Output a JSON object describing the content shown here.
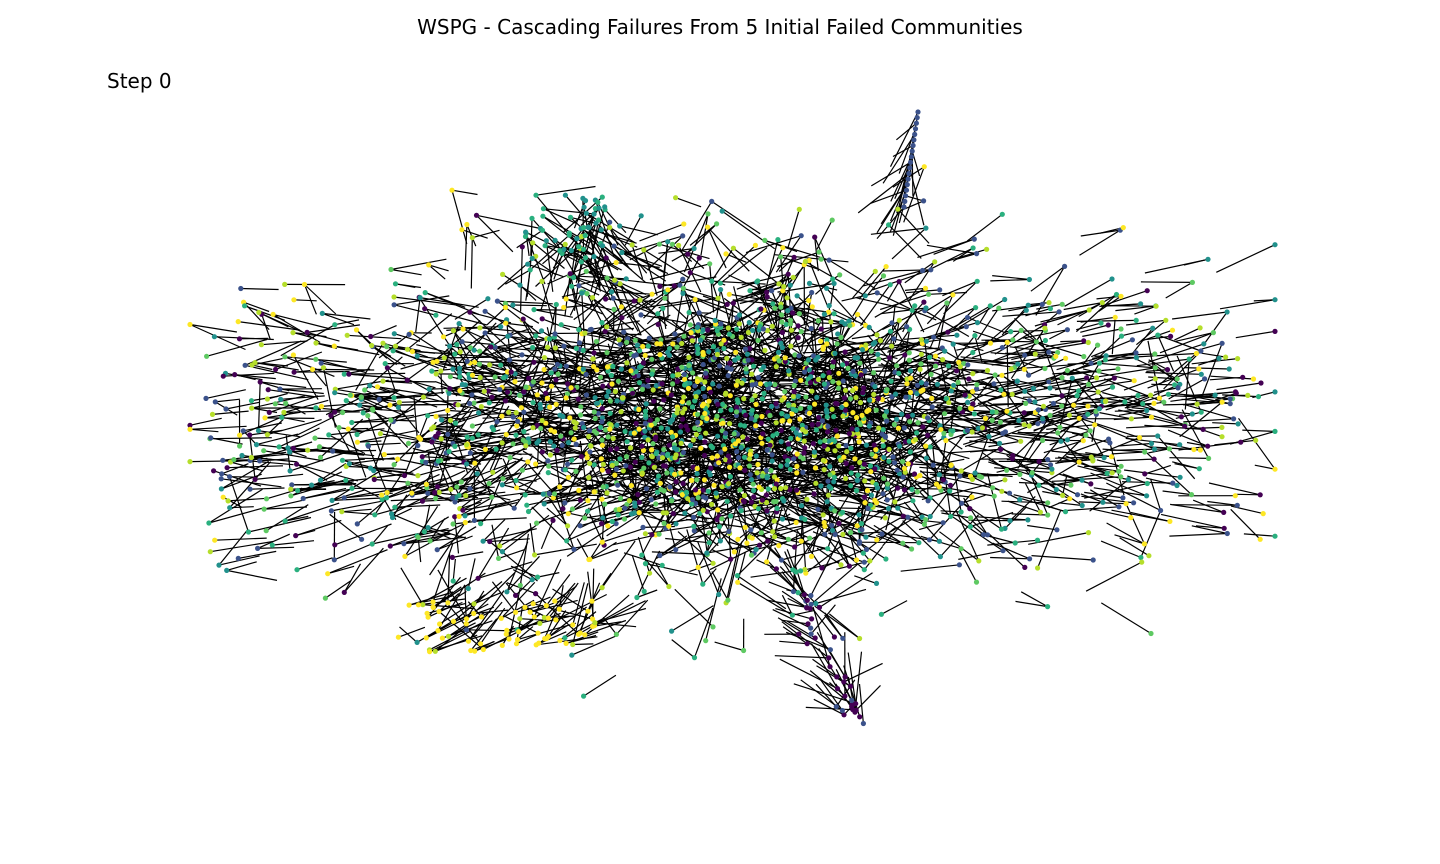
{
  "figure": {
    "title": "WSPG - Cascading Failures From 5 Initial Failed Communities",
    "step_label": "Step 0"
  },
  "graph": {
    "edge_color": "#000000",
    "background": "#ffffff",
    "node_colors": [
      "#440154",
      "#3b528b",
      "#21918c",
      "#2ab07f",
      "#5ec962",
      "#b5de2b",
      "#fde725"
    ],
    "node_count": 2600
  }
}
